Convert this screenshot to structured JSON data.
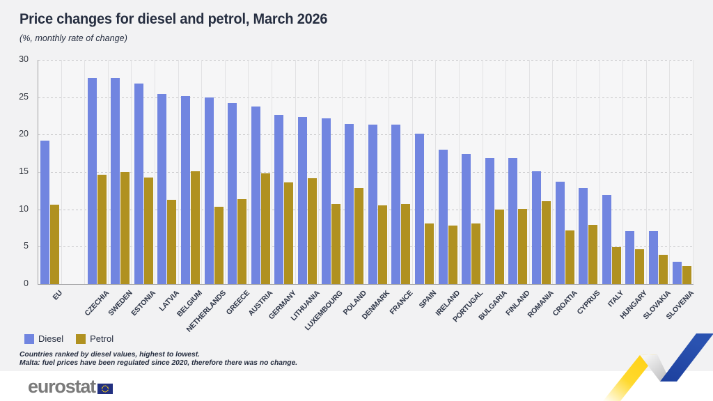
{
  "title": "Price changes for diesel and petrol, March 2026",
  "subtitle": "(%, monthly rate of change)",
  "legend": {
    "diesel_label": "Diesel",
    "petrol_label": "Petrol"
  },
  "footnotes": [
    "Countries ranked by diesel values, highest to lowest.",
    "Malta: fuel prices have been regulated since 2020, therefore there was no change."
  ],
  "footer": {
    "logo_text": "eurostat"
  },
  "colors": {
    "diesel": "#7185e0",
    "petrol": "#b09120",
    "title_text": "#262e40",
    "page_background": "#f2f2f3",
    "ribbon_yellow": "#ffd012",
    "ribbon_blue": "#2a52b0",
    "flag_blue": "#223081",
    "flag_star_yellow": "#ffd617"
  },
  "chart_data": {
    "type": "bar",
    "title": "Price changes for diesel and petrol, March 2026",
    "subtitle": "(%, monthly rate of change)",
    "ylabel": "",
    "xlabel": "",
    "ylim": [
      0,
      30
    ],
    "ytick_step": 5,
    "grid": "horizontal-dashed",
    "legend_position": "bottom-left",
    "note": "gap column between EU aggregate and individual countries",
    "categories": [
      "EU",
      "CZECHIA",
      "SWEDEN",
      "ESTONIA",
      "LATVIA",
      "BELGIUM",
      "NETHERLANDS",
      "GREECE",
      "AUSTRIA",
      "GERMANY",
      "LITHUANIA",
      "LUXEMBOURG",
      "POLAND",
      "DENMARK",
      "FRANCE",
      "SPAIN",
      "IRELAND",
      "PORTUGAL",
      "BULGARIA",
      "FINLAND",
      "ROMANIA",
      "CROATIA",
      "CYPRUS",
      "ITALY",
      "HUNGARY",
      "SLOVAKIA",
      "SLOVENIA"
    ],
    "series": [
      {
        "name": "Diesel",
        "values": [
          19.2,
          27.6,
          27.6,
          26.8,
          25.4,
          25.2,
          25.0,
          24.2,
          23.8,
          22.6,
          22.4,
          22.2,
          21.4,
          21.3,
          21.3,
          20.1,
          18.0,
          17.4,
          16.9,
          16.9,
          15.1,
          13.7,
          12.9,
          11.9,
          7.1,
          7.1,
          3.0
        ]
      },
      {
        "name": "Petrol",
        "values": [
          10.6,
          14.6,
          15.0,
          14.3,
          11.3,
          15.1,
          10.3,
          11.4,
          14.8,
          13.6,
          14.2,
          10.7,
          12.9,
          10.5,
          10.7,
          8.1,
          7.8,
          8.1,
          10.0,
          10.1,
          11.1,
          7.2,
          7.9,
          4.9,
          4.7,
          3.9,
          2.4
        ]
      }
    ]
  }
}
